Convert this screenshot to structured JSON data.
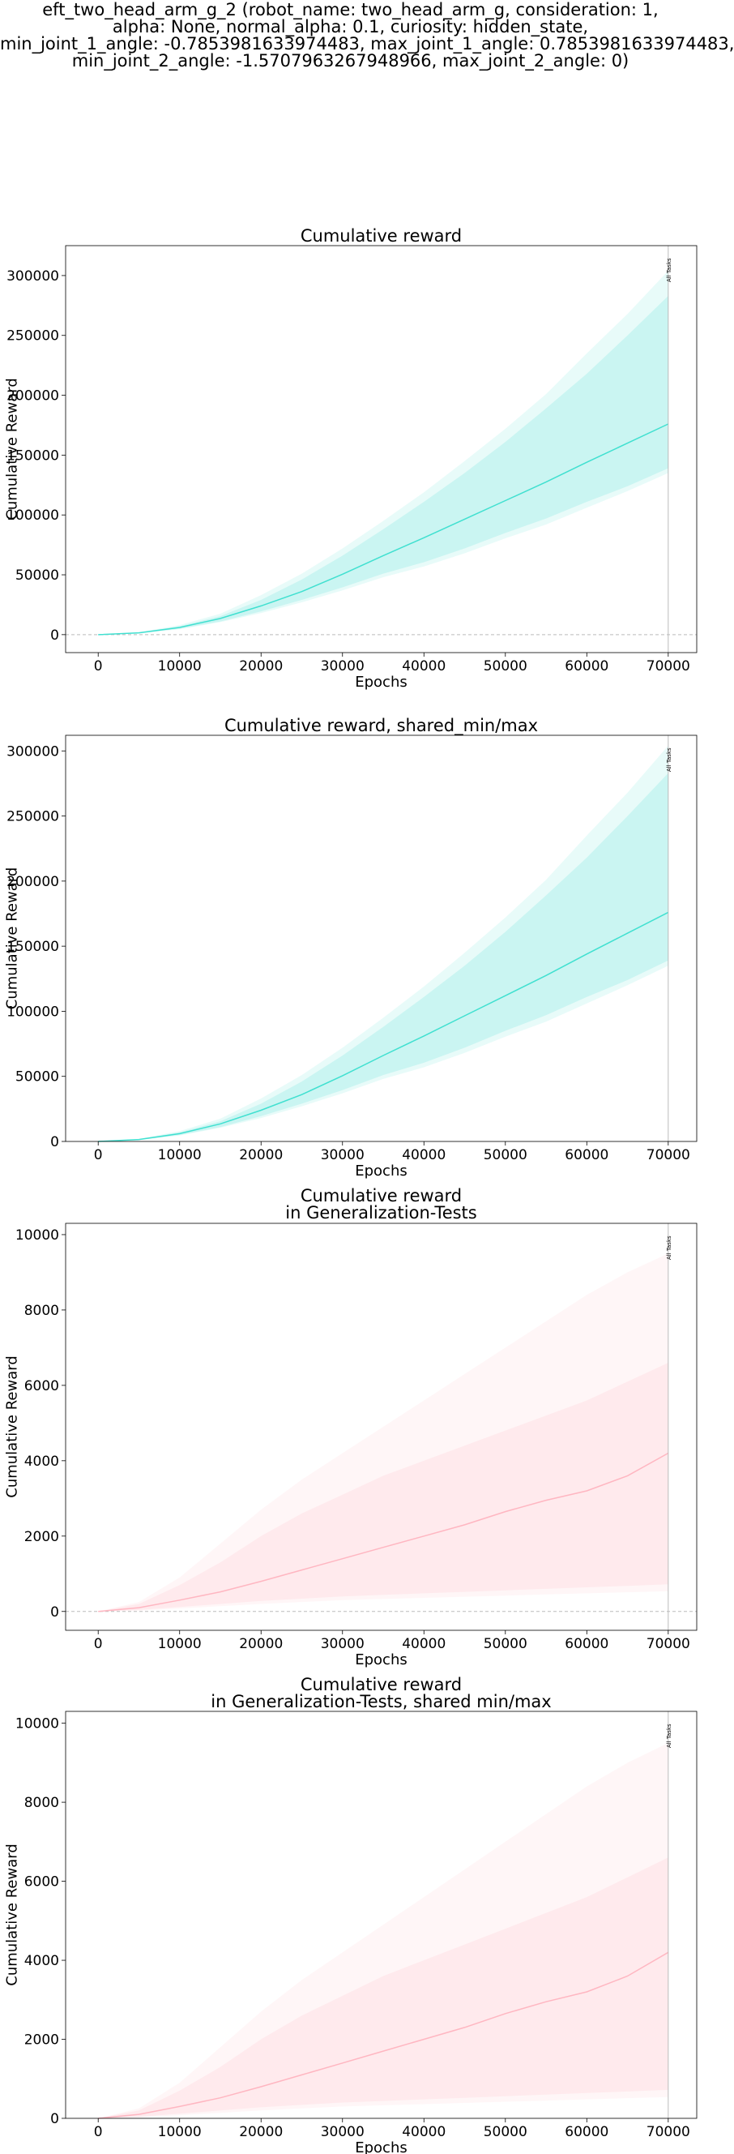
{
  "figure": {
    "suptitle_lines": [
      "eft_two_head_arm_g_2 (robot_name: two_head_arm_g, consideration: 1,",
      "alpha: None, normal_alpha: 0.1, curiosity: hidden_state,",
      "min_joint_1_angle: -0.7853981633974483, max_joint_1_angle: 0.7853981633974483,",
      "min_joint_2_angle: -1.5707963267948966, max_joint_2_angle: 0)"
    ]
  },
  "chart_data": [
    {
      "type": "line",
      "title_lines": [
        "Cumulative reward"
      ],
      "xlabel": "Epochs",
      "ylabel": "Cumulative Reward",
      "xlim": [
        -4000,
        73500
      ],
      "ylim": [
        -15000,
        325000
      ],
      "xticks": [
        0,
        10000,
        20000,
        30000,
        40000,
        50000,
        60000,
        70000
      ],
      "yticks": [
        0,
        50000,
        100000,
        150000,
        200000,
        250000,
        300000
      ],
      "zero_line": true,
      "vline": {
        "x": 70000,
        "label": "All Tasks"
      },
      "color": "#40e0d0",
      "series": [
        {
          "x": [
            0,
            5000,
            10000,
            15000,
            20000,
            25000,
            30000,
            35000,
            40000,
            45000,
            50000,
            55000,
            60000,
            65000,
            70000
          ],
          "mean": [
            0,
            1500,
            6000,
            13500,
            24000,
            36000,
            50500,
            66000,
            81000,
            96500,
            112000,
            127500,
            144000,
            160000,
            176000
          ],
          "inner_low": [
            0,
            1200,
            5000,
            11000,
            19500,
            29000,
            39500,
            51000,
            60500,
            72000,
            85000,
            97000,
            111000,
            124000,
            139000
          ],
          "inner_high": [
            0,
            1800,
            7000,
            15500,
            29000,
            46000,
            66000,
            88000,
            111000,
            135000,
            161000,
            189000,
            218000,
            250000,
            283000
          ],
          "outer_low": [
            0,
            1000,
            4500,
            10500,
            18000,
            27000,
            37000,
            48000,
            57000,
            68000,
            80500,
            92000,
            106000,
            120000,
            135000
          ],
          "outer_high": [
            0,
            2000,
            8000,
            17500,
            33000,
            51000,
            72000,
            95000,
            119000,
            145000,
            172000,
            201000,
            235000,
            268000,
            304000
          ]
        }
      ]
    },
    {
      "type": "line",
      "title_lines": [
        "Cumulative reward, shared_min/max"
      ],
      "xlabel": "Epochs",
      "ylabel": "Cumulative Reward",
      "xlim": [
        -4000,
        73500
      ],
      "ylim": [
        0,
        312000
      ],
      "xticks": [
        0,
        10000,
        20000,
        30000,
        40000,
        50000,
        60000,
        70000
      ],
      "yticks": [
        0,
        50000,
        100000,
        150000,
        200000,
        250000,
        300000
      ],
      "zero_line": false,
      "vline": {
        "x": 70000,
        "label": "All Tasks"
      },
      "color": "#40e0d0",
      "series": [
        {
          "x": [
            0,
            5000,
            10000,
            15000,
            20000,
            25000,
            30000,
            35000,
            40000,
            45000,
            50000,
            55000,
            60000,
            65000,
            70000
          ],
          "mean": [
            0,
            1500,
            6000,
            13500,
            24000,
            36000,
            50500,
            66000,
            81000,
            96500,
            112000,
            127500,
            144000,
            160000,
            176000
          ],
          "inner_low": [
            0,
            1200,
            5000,
            11000,
            19500,
            29000,
            39500,
            51000,
            60500,
            72000,
            85000,
            97000,
            111000,
            124000,
            139000
          ],
          "inner_high": [
            0,
            1800,
            7000,
            15500,
            29000,
            46000,
            66000,
            88000,
            111000,
            135000,
            161000,
            189000,
            218000,
            250000,
            283000
          ],
          "outer_low": [
            0,
            1000,
            4500,
            10500,
            18000,
            27000,
            37000,
            48000,
            57000,
            68000,
            80500,
            92000,
            106000,
            120000,
            135000
          ],
          "outer_high": [
            0,
            2000,
            8000,
            17500,
            33000,
            51000,
            72000,
            95000,
            119000,
            145000,
            172000,
            201000,
            235000,
            268000,
            304000
          ]
        }
      ]
    },
    {
      "type": "line",
      "title_lines": [
        "Cumulative reward",
        "in Generalization-Tests"
      ],
      "xlabel": "Epochs",
      "ylabel": "Cumulative Reward",
      "xlim": [
        -4000,
        73500
      ],
      "ylim": [
        -500,
        10300
      ],
      "xticks": [
        0,
        10000,
        20000,
        30000,
        40000,
        50000,
        60000,
        70000
      ],
      "yticks": [
        0,
        2000,
        4000,
        6000,
        8000,
        10000
      ],
      "zero_line": true,
      "vline": {
        "x": 70000,
        "label": "All Tasks"
      },
      "color": "#ffb6c1",
      "series": [
        {
          "x": [
            0,
            5000,
            10000,
            15000,
            20000,
            25000,
            30000,
            35000,
            40000,
            45000,
            50000,
            55000,
            60000,
            65000,
            70000
          ],
          "mean": [
            0,
            100,
            300,
            520,
            800,
            1100,
            1400,
            1700,
            2000,
            2300,
            2650,
            2950,
            3200,
            3600,
            4200
          ],
          "inner_low": [
            0,
            40,
            120,
            200,
            280,
            340,
            400,
            440,
            480,
            520,
            560,
            600,
            640,
            680,
            720
          ],
          "inner_high": [
            0,
            200,
            700,
            1300,
            2000,
            2600,
            3100,
            3600,
            4000,
            4400,
            4800,
            5200,
            5600,
            6100,
            6600
          ],
          "outer_low": [
            0,
            20,
            80,
            140,
            200,
            250,
            300,
            330,
            360,
            390,
            420,
            450,
            480,
            510,
            540
          ],
          "outer_high": [
            0,
            250,
            900,
            1800,
            2700,
            3500,
            4200,
            4900,
            5600,
            6300,
            7000,
            7700,
            8400,
            9000,
            9500
          ]
        }
      ]
    },
    {
      "type": "line",
      "title_lines": [
        "Cumulative reward",
        "in Generalization-Tests, shared min/max"
      ],
      "xlabel": "Epochs",
      "ylabel": "Cumulative Reward",
      "xlim": [
        -4000,
        73500
      ],
      "ylim": [
        0,
        10300
      ],
      "xticks": [
        0,
        10000,
        20000,
        30000,
        40000,
        50000,
        60000,
        70000
      ],
      "yticks": [
        0,
        2000,
        4000,
        6000,
        8000,
        10000
      ],
      "zero_line": false,
      "vline": {
        "x": 70000,
        "label": "All Tasks"
      },
      "color": "#ffb6c1",
      "series": [
        {
          "x": [
            0,
            5000,
            10000,
            15000,
            20000,
            25000,
            30000,
            35000,
            40000,
            45000,
            50000,
            55000,
            60000,
            65000,
            70000
          ],
          "mean": [
            0,
            100,
            300,
            520,
            800,
            1100,
            1400,
            1700,
            2000,
            2300,
            2650,
            2950,
            3200,
            3600,
            4200
          ],
          "inner_low": [
            0,
            40,
            120,
            200,
            280,
            340,
            400,
            440,
            480,
            520,
            560,
            600,
            640,
            680,
            720
          ],
          "inner_high": [
            0,
            200,
            700,
            1300,
            2000,
            2600,
            3100,
            3600,
            4000,
            4400,
            4800,
            5200,
            5600,
            6100,
            6600
          ],
          "outer_low": [
            0,
            20,
            80,
            140,
            200,
            250,
            300,
            330,
            360,
            390,
            420,
            450,
            480,
            510,
            540
          ],
          "outer_high": [
            0,
            250,
            900,
            1800,
            2700,
            3500,
            4200,
            4900,
            5600,
            6300,
            7000,
            7700,
            8400,
            9000,
            9500
          ]
        }
      ]
    }
  ]
}
